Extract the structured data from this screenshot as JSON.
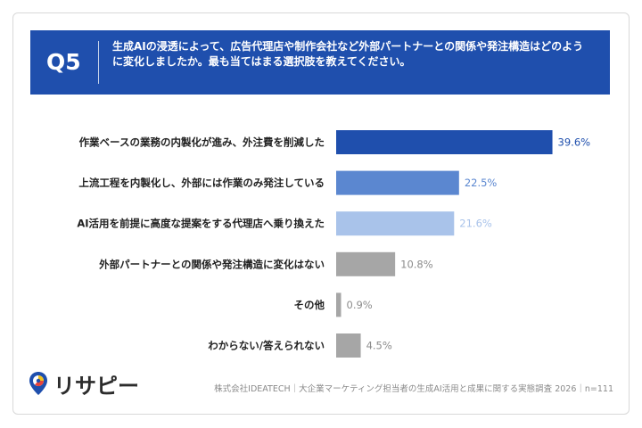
{
  "question": {
    "label": "Q5",
    "text": "生成AIの浸透によって、広告代理店や制作会社など外部パートナーとの関係や発注構造はどのように変化しましたか。最も当てはまる選択肢を教えてください。"
  },
  "brand": {
    "name": "リサピー",
    "icon": "location-pin-icon"
  },
  "footer": {
    "source": "株式会社IDEATECH｜大企業マーケティング担当者の生成AI活用と成果に関する実態調査 2026｜n=111"
  },
  "colors": {
    "header": "#1f4fad",
    "bar_1": "#1f4fad",
    "bar_2": "#5b87d0",
    "bar_3": "#a9c3ea",
    "bar_other": "#a6a6a6"
  },
  "chart_data": {
    "type": "bar",
    "orientation": "horizontal",
    "unit": "%",
    "categories": [
      "作業ベースの業務の内製化が進み、外注費を削減した",
      "上流工程を内製化し、外部には作業のみ発注している",
      "AI活用を前提に高度な提案をする代理店へ乗り換えた",
      "外部パートナーとの関係や発注構造に変化はない",
      "その他",
      "わからない/答えられない"
    ],
    "values": [
      39.6,
      22.5,
      21.6,
      10.8,
      0.9,
      4.5
    ],
    "value_labels": [
      "39.6%",
      "22.5%",
      "21.6%",
      "10.8%",
      "0.9%",
      "4.5%"
    ],
    "bar_colors": [
      "#1f4fad",
      "#5b87d0",
      "#a9c3ea",
      "#a6a6a6",
      "#a6a6a6",
      "#a6a6a6"
    ],
    "label_colors": [
      "#1f4fad",
      "#5b87d0",
      "#a9c3ea",
      "#8c8c8c",
      "#8c8c8c",
      "#8c8c8c"
    ],
    "xlim": [
      0,
      40
    ],
    "grid": false,
    "legend": "none"
  }
}
